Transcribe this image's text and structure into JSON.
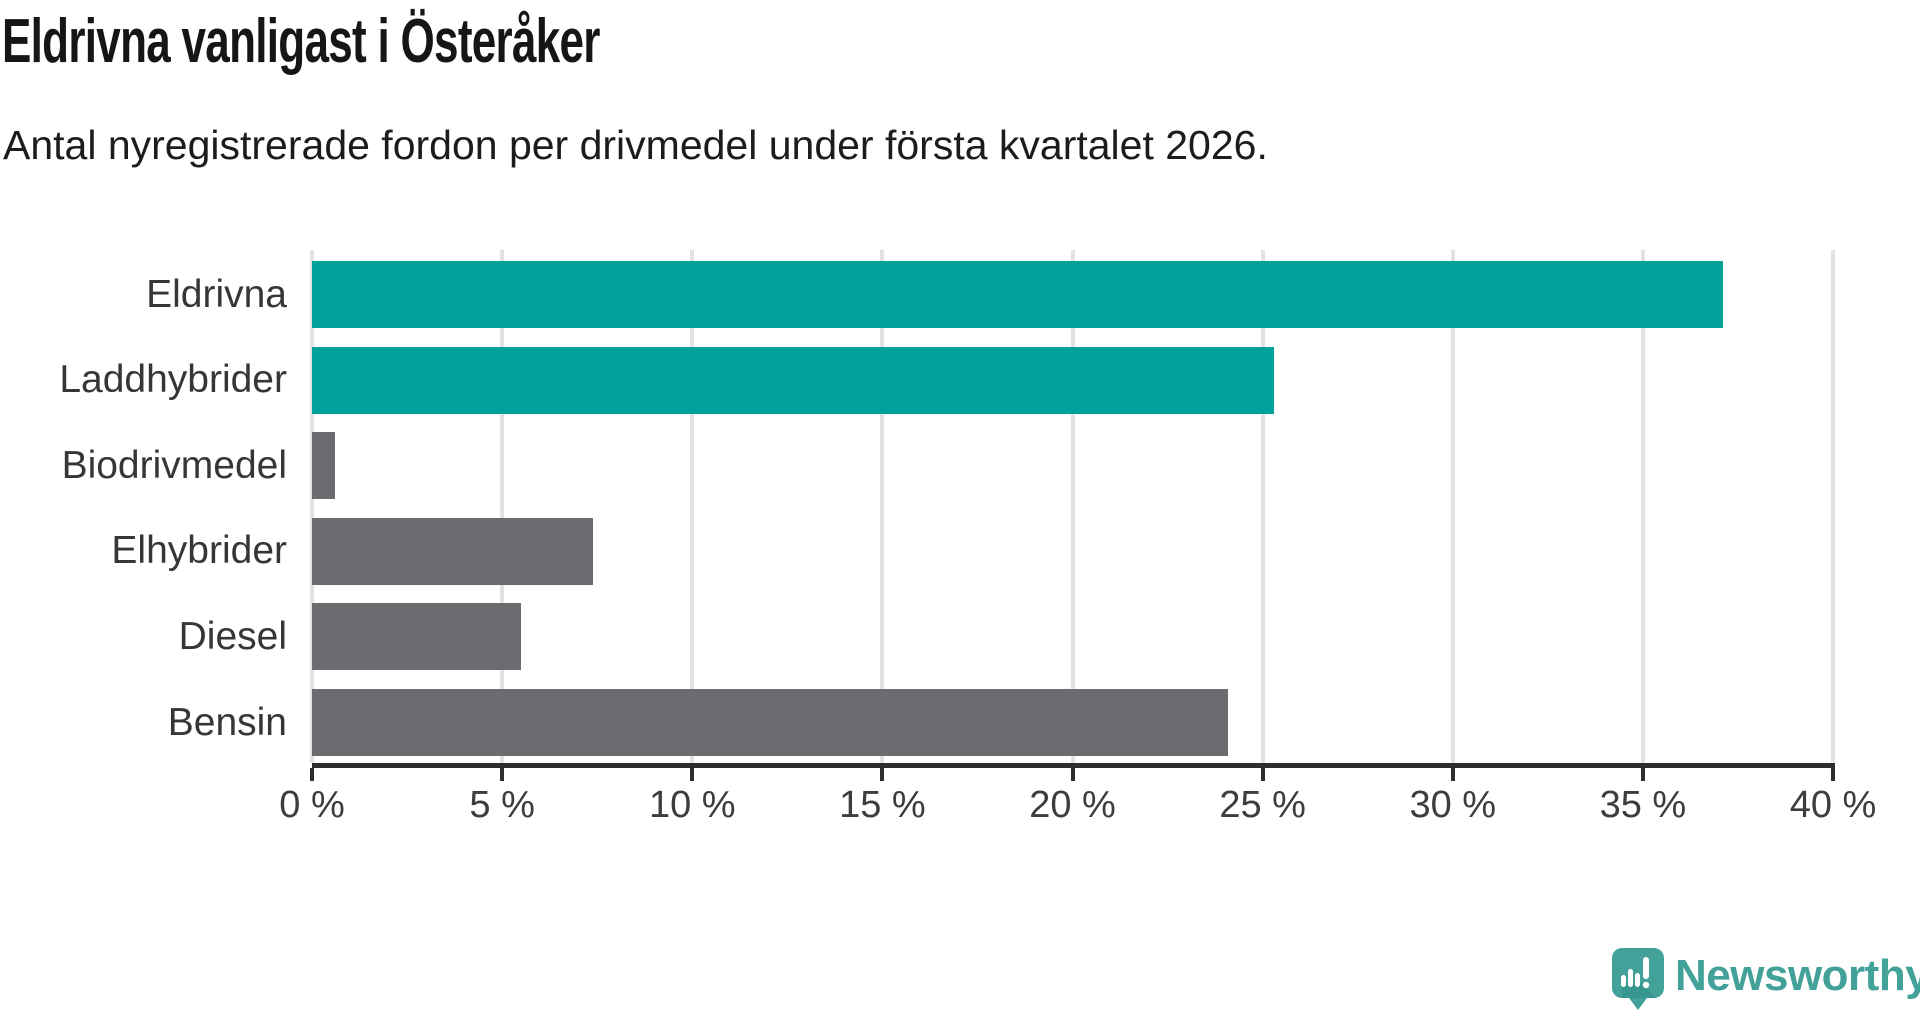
{
  "header": {
    "title": "Eldrivna vanligast i Österåker",
    "subtitle": "Antal nyregistrerade fordon per drivmedel under första kvartalet 2026."
  },
  "chart_data": {
    "type": "bar",
    "orientation": "horizontal",
    "title": "Eldrivna vanligast i Österåker",
    "subtitle": "Antal nyregistrerade fordon per drivmedel under första kvartalet 2026.",
    "categories": [
      "Eldrivna",
      "Laddhybrider",
      "Biodrivmedel",
      "Elhybrider",
      "Diesel",
      "Bensin"
    ],
    "values": [
      37.1,
      25.3,
      0.6,
      7.4,
      5.5,
      24.1
    ],
    "unit": "%",
    "xlim": [
      0,
      40
    ],
    "xticks": [
      0,
      5,
      10,
      15,
      20,
      25,
      30,
      35,
      40
    ],
    "xtick_labels": [
      "0 %",
      "5 %",
      "10 %",
      "15 %",
      "20 %",
      "25 %",
      "30 %",
      "35 %",
      "40 %"
    ],
    "bar_colors": [
      "#00a19a",
      "#00a19a",
      "#6b6b70",
      "#6b6b70",
      "#6b6b70",
      "#6b6b70"
    ],
    "grid": true,
    "legend": false,
    "xlabel": "",
    "ylabel": ""
  },
  "colors": {
    "highlight": "#00a19a",
    "default_bar": "#6b6b70",
    "grid": "#e2e2e2",
    "axis": "#2d2d2d",
    "logo": "#42a29a"
  },
  "branding": {
    "logo_text": "Newsworthy"
  }
}
